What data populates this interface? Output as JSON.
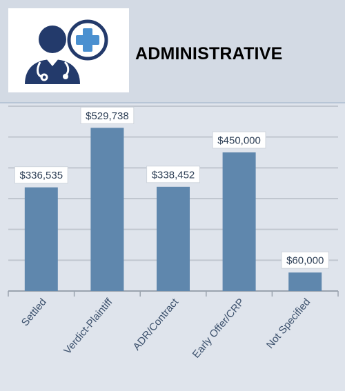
{
  "header": {
    "title": "ADMINISTRATIVE",
    "logo_icon": "doctor-medical-cross-icon",
    "logo_colors": {
      "doctor": "#233a6b",
      "cross": "#4a90d0"
    }
  },
  "chart_data": {
    "type": "bar",
    "title": "",
    "xlabel": "",
    "ylabel": "",
    "categories": [
      "Settled",
      "Verdict-Plaintiff",
      "ADR/Contract",
      "Early Offer/CRP",
      "Not Specified"
    ],
    "values": [
      336535,
      529738,
      338452,
      450000,
      60000
    ],
    "data_labels": [
      "$336,535",
      "$529,738",
      "$338,452",
      "$450,000",
      "$60,000"
    ],
    "ylim": [
      0,
      600000
    ],
    "grid": true,
    "bar_color": "#5f87ad",
    "grid_color": "#c0c6cf",
    "legend": "none"
  }
}
